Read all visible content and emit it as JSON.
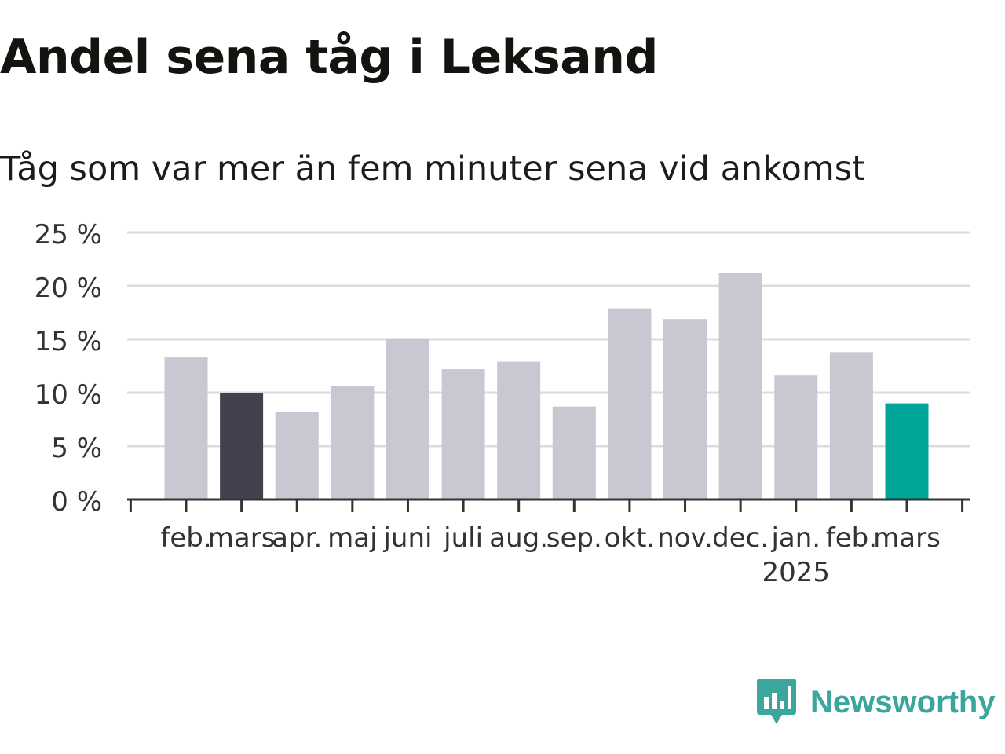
{
  "title": "Andel sena tåg i Leksand",
  "subtitle": "Tåg som var mer än fem minuter sena vid ankomst",
  "brand": {
    "name": "Newsworthy",
    "color": "#3aa69c",
    "icon": "newsworthy-chart-bubble-icon"
  },
  "chart_data": {
    "type": "bar",
    "categories": [
      "feb.",
      "mars",
      "apr.",
      "maj",
      "juni",
      "juli",
      "aug.",
      "sep.",
      "okt.",
      "nov.",
      "dec.",
      "jan.",
      "feb.",
      "mars"
    ],
    "year_label": "2025",
    "year_label_category_index": 11,
    "values": [
      13.3,
      10.0,
      8.2,
      10.6,
      15.1,
      12.2,
      12.9,
      8.7,
      17.9,
      16.9,
      21.2,
      11.6,
      13.8,
      9.0
    ],
    "bar_colors": [
      "#c8c7d2",
      "#43414e",
      "#c8c7d2",
      "#c8c7d2",
      "#c8c7d2",
      "#c8c7d2",
      "#c8c7d2",
      "#c8c7d2",
      "#c8c7d2",
      "#c8c7d2",
      "#c8c7d2",
      "#c8c7d2",
      "#c8c7d2",
      "#00a59a"
    ],
    "yticks": [
      "0 %",
      "5 %",
      "10 %",
      "15 %",
      "20 %",
      "25 %"
    ],
    "ytick_values": [
      0,
      5,
      10,
      15,
      20,
      25
    ],
    "ylim": [
      0,
      25
    ],
    "grid": true,
    "legend": false,
    "xlabel": "",
    "ylabel": ""
  }
}
